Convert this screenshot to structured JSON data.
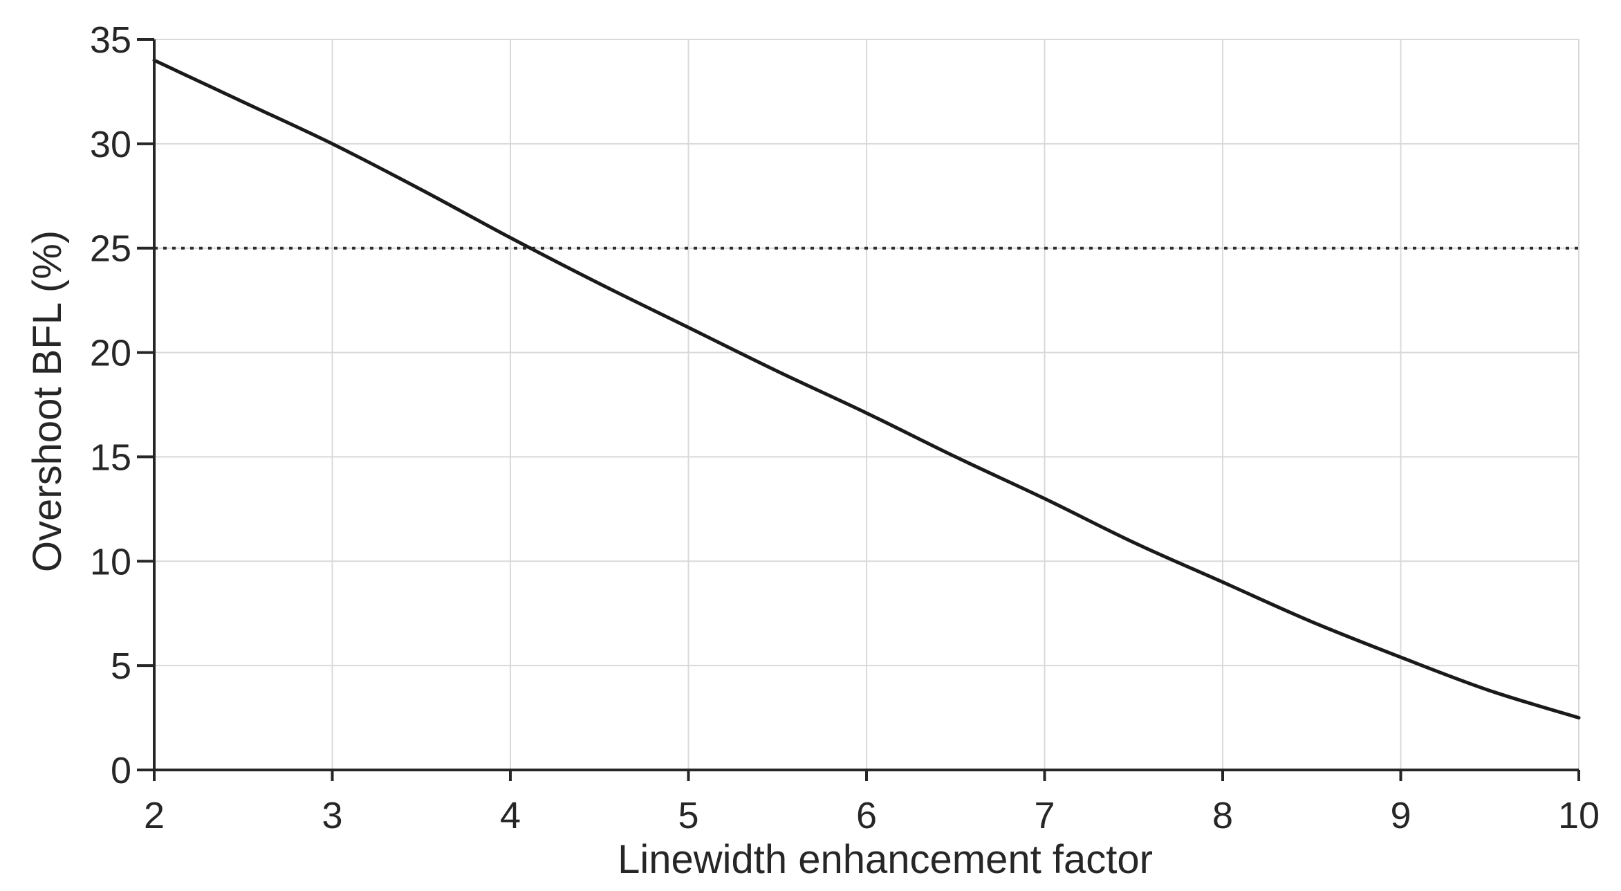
{
  "chart_data": {
    "type": "line",
    "title": "",
    "xlabel": "Linewidth enhancement factor",
    "ylabel": "Overshoot BFL (%)",
    "xlim": [
      2,
      10
    ],
    "ylim": [
      0,
      35
    ],
    "x_ticks": [
      2,
      3,
      4,
      5,
      6,
      7,
      8,
      9,
      10
    ],
    "y_ticks": [
      0,
      5,
      10,
      15,
      20,
      25,
      30,
      35
    ],
    "grid": true,
    "legend": "none",
    "background": "#ffffff",
    "colors": {
      "curve": "#1a1a1a",
      "threshold": "#2e2e2e",
      "gridline": "#d9d9d9",
      "axis": "#262626",
      "text": "#262626"
    },
    "series": [
      {
        "name": "overshoot-vs-linewidth-enhancement-factor",
        "kind": "smooth-line",
        "style": "solid",
        "x": [
          2,
          2.5,
          3,
          3.5,
          4,
          4.5,
          5,
          5.5,
          6,
          6.5,
          7,
          7.5,
          8,
          8.5,
          9,
          9.5,
          10
        ],
        "y": [
          34.0,
          32.0,
          30.0,
          27.8,
          25.5,
          23.3,
          21.2,
          19.1,
          17.1,
          15.0,
          13.0,
          10.9,
          9.0,
          7.1,
          5.4,
          3.8,
          2.5
        ]
      },
      {
        "name": "threshold-25-percent-dotted-line",
        "kind": "horizontal-line",
        "style": "dotted",
        "y": 25
      }
    ]
  }
}
